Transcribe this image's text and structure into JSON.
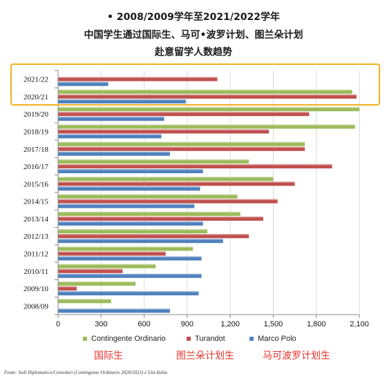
{
  "titles": {
    "line1": "• 2008/2009学年至2021/2022学年",
    "line2": "中国学生通过国际生、马可•波罗计划、图兰朵计划",
    "line3": "赴意留学人数趋势"
  },
  "annotations": {
    "cn_contingente": "国际生",
    "cn_turandot": "图兰朵计划生",
    "cn_marco": "马可波罗计划生"
  },
  "source": "Fonte: Sedi Diplomatico/Consolari (Contingente Ordinario 2020/2021) e Uni-Italia",
  "colors": {
    "contingente": "#9bbb59",
    "turandot": "#c0504d",
    "marco": "#4f81bd",
    "highlight": "#f2b21c",
    "annotation": "#e8302a"
  },
  "chart_data": {
    "type": "bar",
    "orientation": "horizontal",
    "categories": [
      "2021/22",
      "2020/21",
      "2019/20",
      "2018/19",
      "2017/18",
      "2016/17",
      "2015/16",
      "2014/15",
      "2013/14",
      "2012/13",
      "2011/12",
      "2010/11",
      "2009/10",
      "2008/09"
    ],
    "series": [
      {
        "name": "Contingente Ordinario",
        "color": "#9bbb59",
        "values": [
          0,
          2050,
          2100,
          2070,
          1720,
          1330,
          1500,
          1250,
          1270,
          1040,
          940,
          680,
          540,
          370
        ]
      },
      {
        "name": "Turandot",
        "color": "#c0504d",
        "values": [
          1110,
          2080,
          1750,
          1470,
          1720,
          1910,
          1650,
          1530,
          1430,
          1330,
          750,
          450,
          130,
          0
        ]
      },
      {
        "name": "Marco Polo",
        "color": "#4f81bd",
        "values": [
          350,
          890,
          740,
          720,
          780,
          1010,
          990,
          950,
          1010,
          1150,
          1000,
          1000,
          980,
          780
        ]
      }
    ],
    "xlim": [
      0,
      2100
    ],
    "xticks": [
      0,
      300,
      600,
      900,
      1200,
      1500,
      1800,
      2100
    ],
    "xtick_labels": [
      "0",
      "300",
      "600",
      "900",
      "1,200",
      "1,500",
      "1,800",
      "2,100"
    ],
    "grid": true,
    "legend_position": "bottom"
  }
}
